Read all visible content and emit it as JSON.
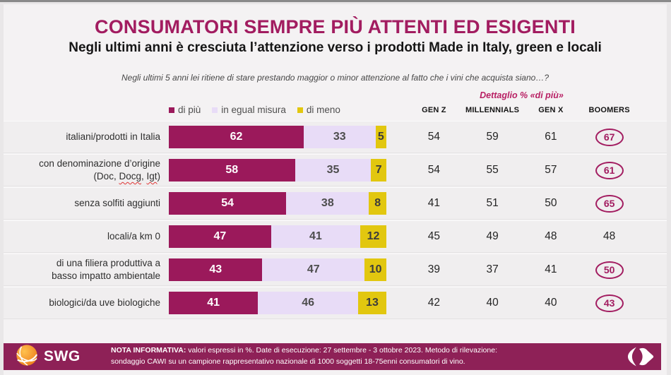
{
  "theme": {
    "title_color": "#A21C60",
    "accent": "#A21C60",
    "detail_color": "#B81F63",
    "footer_bg": "#8E2157",
    "dipiu": "#9B195B",
    "egual": "#E8DCF7",
    "dimeno": "#E2C70F"
  },
  "header": {
    "title": "CONSUMATORI SEMPRE PIÙ ATTENTI ED ESIGENTI",
    "subtitle": "Negli ultimi anni è cresciuta l’attenzione verso i prodotti Made in Italy, green e locali",
    "question": "Negli ultimi 5 anni lei ritiene di stare prestando maggior o minor attenzione al fatto che i vini che acquista siano…?"
  },
  "legend": {
    "items": [
      {
        "label": "di più",
        "color_key": "dipiu"
      },
      {
        "label": "in egual misura",
        "color_key": "egual"
      },
      {
        "label": "di meno",
        "color_key": "dimeno"
      }
    ]
  },
  "demographics": {
    "detail_label": "Dettaglio % «di più»",
    "columns": [
      "GEN Z",
      "MILLENNIALS",
      "GEN X",
      "BOOMERS"
    ]
  },
  "rows_labels": [
    {
      "lines": [
        [
          {
            "text": "italiani/prodotti in Italia"
          }
        ]
      ]
    },
    {
      "lines": [
        [
          {
            "text": "con denominazione d’origine"
          }
        ],
        [
          {
            "text": "(Doc, "
          },
          {
            "text": "Docg",
            "wavy": true
          },
          {
            "text": ", "
          },
          {
            "text": "Igt",
            "wavy": true
          },
          {
            "text": ")"
          }
        ]
      ]
    },
    {
      "lines": [
        [
          {
            "text": "senza solfiti aggiunti"
          }
        ]
      ]
    },
    {
      "lines": [
        [
          {
            "text": "locali/a km 0"
          }
        ]
      ]
    },
    {
      "lines": [
        [
          {
            "text": "di una filiera produttiva a"
          }
        ],
        [
          {
            "text": "basso impatto ambientale"
          }
        ]
      ]
    },
    {
      "lines": [
        [
          {
            "text": "biologici/da uve biologiche"
          }
        ]
      ]
    }
  ],
  "chart_data": {
    "type": "bar",
    "orientation": "horizontal",
    "stacked": true,
    "unit": "%",
    "title": "CONSUMATORI SEMPRE PIÙ ATTENTI ED ESIGENTI",
    "subtitle": "Negli ultimi anni è cresciuta l’attenzione verso i prodotti Made in Italy, green e locali",
    "xlim": [
      0,
      100
    ],
    "categories": [
      "italiani/prodotti in Italia",
      "con denominazione d’origine (Doc, Docg, Igt)",
      "senza solfiti aggiunti",
      "locali/a km 0",
      "di una filiera produttiva a basso impatto ambientale",
      "biologici/da uve biologiche"
    ],
    "series": [
      {
        "name": "di più",
        "values": [
          62,
          58,
          54,
          47,
          43,
          41
        ]
      },
      {
        "name": "in egual misura",
        "values": [
          33,
          35,
          38,
          41,
          47,
          46
        ]
      },
      {
        "name": "di meno",
        "values": [
          5,
          7,
          8,
          12,
          10,
          13
        ]
      }
    ],
    "detail_table": {
      "title": "Dettaglio % «di più»",
      "columns": [
        "GEN Z",
        "MILLENNIALS",
        "GEN X",
        "BOOMERS"
      ],
      "rows": [
        [
          54,
          59,
          61,
          67
        ],
        [
          54,
          55,
          57,
          61
        ],
        [
          41,
          51,
          50,
          65
        ],
        [
          45,
          49,
          48,
          48
        ],
        [
          39,
          37,
          41,
          50
        ],
        [
          42,
          40,
          40,
          43
        ]
      ],
      "circled_boomers": [
        true,
        true,
        true,
        false,
        true,
        true
      ]
    }
  },
  "footer": {
    "brand_left": "SWG",
    "note_title": "NOTA INFORMATIVA:",
    "note_rest_line1": " valori espressi in %. Date di esecuzione: 27 settembre - 3 ottobre 2023. Metodo di rilevazione:",
    "note_line2": "sondaggio CAWI su un campione rappresentativo nazionale di 1000 soggetti 18-75enni consumatori di vino."
  }
}
